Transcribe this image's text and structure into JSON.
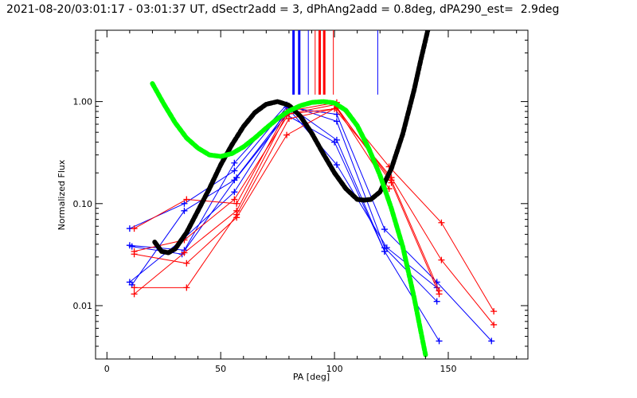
{
  "chart_data": {
    "type": "line",
    "title": "2021-08-20/03:01:17 - 03:01:37 UT, dSectr2add = 3, dPhAng2add = 0.8deg, dPA290_est=  2.9deg",
    "xlabel": "PA [deg]",
    "ylabel": "Normalized Flux",
    "xlim": [
      -5,
      185
    ],
    "ylim": [
      0.003,
      5
    ],
    "yscale": "log",
    "x_ticks": [
      0,
      50,
      100,
      150
    ],
    "x_tick_labels": [
      "0",
      "50",
      "100",
      "150"
    ],
    "y_ticks": [
      0.01,
      0.1,
      1.0
    ],
    "y_tick_labels": [
      "0.01",
      "0.10",
      "1.00"
    ],
    "grid": false,
    "series": [
      {
        "color": "#0000ff",
        "x": [
          10,
          34,
          56,
          79,
          101,
          122,
          145,
          169
        ],
        "y": [
          0.057,
          0.1,
          0.21,
          0.88,
          0.75,
          0.056,
          0.017,
          0.0045
        ]
      },
      {
        "color": "#0000ff",
        "x": [
          10,
          34,
          56,
          79,
          101,
          122,
          145
        ],
        "y": [
          0.039,
          0.035,
          0.25,
          0.93,
          0.64,
          0.037,
          0.011
        ]
      },
      {
        "color": "#0000ff",
        "x": [
          10,
          34,
          56,
          80,
          101,
          122,
          146
        ],
        "y": [
          0.017,
          0.046,
          0.13,
          0.9,
          0.42,
          0.034,
          0.0045
        ]
      },
      {
        "color": "#0000ff",
        "x": [
          11,
          34,
          56,
          80,
          101,
          123,
          145
        ],
        "y": [
          0.016,
          0.085,
          0.17,
          0.84,
          0.24,
          0.037,
          0.015
        ]
      },
      {
        "color": "#0000ff",
        "x": [
          11,
          33,
          57,
          79,
          100,
          122
        ],
        "y": [
          0.038,
          0.032,
          0.18,
          0.74,
          0.4,
          0.034
        ]
      },
      {
        "color": "#ff0000",
        "x": [
          12,
          35,
          57,
          79,
          101,
          124,
          147,
          170
        ],
        "y": [
          0.057,
          0.11,
          0.1,
          0.8,
          0.98,
          0.23,
          0.065,
          0.0088
        ]
      },
      {
        "color": "#ff0000",
        "x": [
          12,
          34,
          57,
          79,
          100,
          125,
          147,
          170
        ],
        "y": [
          0.013,
          0.033,
          0.085,
          0.75,
          0.85,
          0.18,
          0.028,
          0.0065
        ]
      },
      {
        "color": "#ff0000",
        "x": [
          12,
          35,
          57,
          79,
          101,
          125,
          146
        ],
        "y": [
          0.032,
          0.026,
          0.073,
          0.47,
          0.88,
          0.16,
          0.013
        ]
      },
      {
        "color": "#ff0000",
        "x": [
          12,
          35,
          57,
          80,
          101,
          125,
          146
        ],
        "y": [
          0.015,
          0.015,
          0.078,
          0.68,
          0.86,
          0.17,
          0.014
        ]
      },
      {
        "color": "#ff0000",
        "x": [
          12,
          34,
          56,
          80,
          100,
          124
        ],
        "y": [
          0.034,
          0.044,
          0.11,
          0.76,
          0.93,
          0.14
        ]
      }
    ],
    "fit_curves": [
      {
        "color": "#000000",
        "x": [
          21,
          24,
          27,
          30,
          35,
          40,
          45,
          50,
          55,
          60,
          65,
          70,
          75,
          80,
          85,
          90,
          95,
          100,
          105,
          110,
          113,
          116,
          120,
          125,
          130,
          135,
          138,
          141
        ],
        "y": [
          0.042,
          0.034,
          0.033,
          0.036,
          0.052,
          0.085,
          0.14,
          0.24,
          0.38,
          0.57,
          0.78,
          0.94,
          1.0,
          0.92,
          0.72,
          0.49,
          0.31,
          0.2,
          0.14,
          0.11,
          0.108,
          0.11,
          0.13,
          0.22,
          0.48,
          1.3,
          2.6,
          5.0
        ]
      },
      {
        "color": "#00ff00",
        "x": [
          20,
          25,
          30,
          35,
          40,
          45,
          50,
          55,
          60,
          65,
          70,
          75,
          80,
          85,
          90,
          95,
          100,
          105,
          110,
          115,
          120,
          125,
          130,
          135,
          138,
          140
        ],
        "y": [
          1.5,
          0.95,
          0.62,
          0.44,
          0.35,
          0.3,
          0.29,
          0.31,
          0.36,
          0.44,
          0.55,
          0.68,
          0.81,
          0.91,
          0.98,
          1.0,
          0.97,
          0.82,
          0.58,
          0.35,
          0.19,
          0.09,
          0.038,
          0.012,
          0.0055,
          0.0033
        ]
      }
    ],
    "reference_lines": [
      {
        "color": "#0000ff",
        "x": 82,
        "width": 3
      },
      {
        "color": "#0000ff",
        "x": 84.5,
        "width": 3
      },
      {
        "color": "#0000ff",
        "x": 88.5,
        "width": 1
      },
      {
        "color": "#0000ff",
        "x": 119,
        "width": 1
      },
      {
        "color": "#ff0000",
        "x": 91.5,
        "width": 1
      },
      {
        "color": "#ff0000",
        "x": 93.5,
        "width": 3
      },
      {
        "color": "#ff0000",
        "x": 95.5,
        "width": 3
      },
      {
        "color": "#ff0000",
        "x": 99.5,
        "width": 1
      }
    ],
    "reference_line_y_range": [
      1.17,
      5
    ]
  }
}
